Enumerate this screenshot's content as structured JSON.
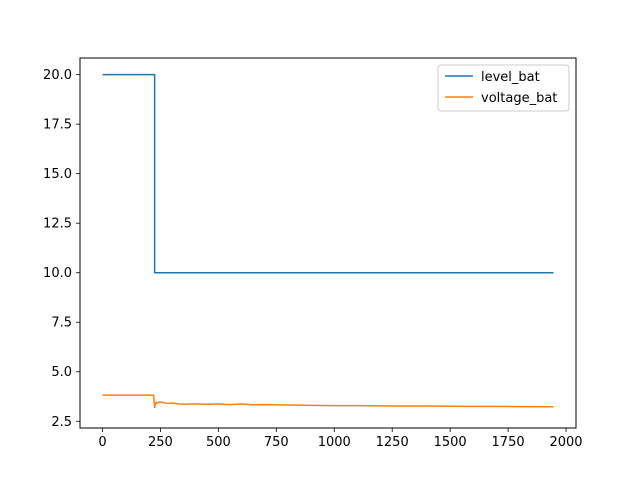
{
  "chart_data": {
    "type": "line",
    "title": "",
    "xlabel": "",
    "ylabel": "",
    "xlim": [
      -97,
      2043
    ],
    "ylim": [
      2.16,
      20.84
    ],
    "xticks": [
      0,
      250,
      500,
      750,
      1000,
      1250,
      1500,
      1750,
      2000
    ],
    "xtick_labels": [
      "0",
      "250",
      "500",
      "750",
      "1000",
      "1250",
      "1500",
      "1750",
      "2000"
    ],
    "yticks": [
      2.5,
      5.0,
      7.5,
      10.0,
      12.5,
      15.0,
      17.5,
      20.0
    ],
    "ytick_labels": [
      "2.5",
      "5.0",
      "7.5",
      "10.0",
      "12.5",
      "15.0",
      "17.5",
      "20.0"
    ],
    "grid": false,
    "legend_position": "top-right",
    "series": [
      {
        "name": "level_bat",
        "color": "#1f77b4",
        "x": [
          0,
          225,
          225,
          1946
        ],
        "y": [
          20.0,
          20.0,
          10.0,
          10.0
        ]
      },
      {
        "name": "voltage_bat",
        "color": "#ff7f0e",
        "x": [
          0,
          220,
          222,
          225,
          228,
          232,
          238,
          245,
          260,
          280,
          300,
          330,
          360,
          400,
          450,
          500,
          550,
          600,
          650,
          700,
          800,
          900,
          1000,
          1100,
          1200,
          1300,
          1400,
          1500,
          1600,
          1700,
          1800,
          1946
        ],
        "y": [
          3.82,
          3.82,
          3.6,
          3.2,
          3.35,
          3.45,
          3.42,
          3.48,
          3.45,
          3.4,
          3.42,
          3.38,
          3.36,
          3.38,
          3.35,
          3.37,
          3.34,
          3.38,
          3.33,
          3.34,
          3.32,
          3.3,
          3.29,
          3.29,
          3.28,
          3.27,
          3.27,
          3.26,
          3.25,
          3.25,
          3.24,
          3.23
        ]
      }
    ]
  }
}
